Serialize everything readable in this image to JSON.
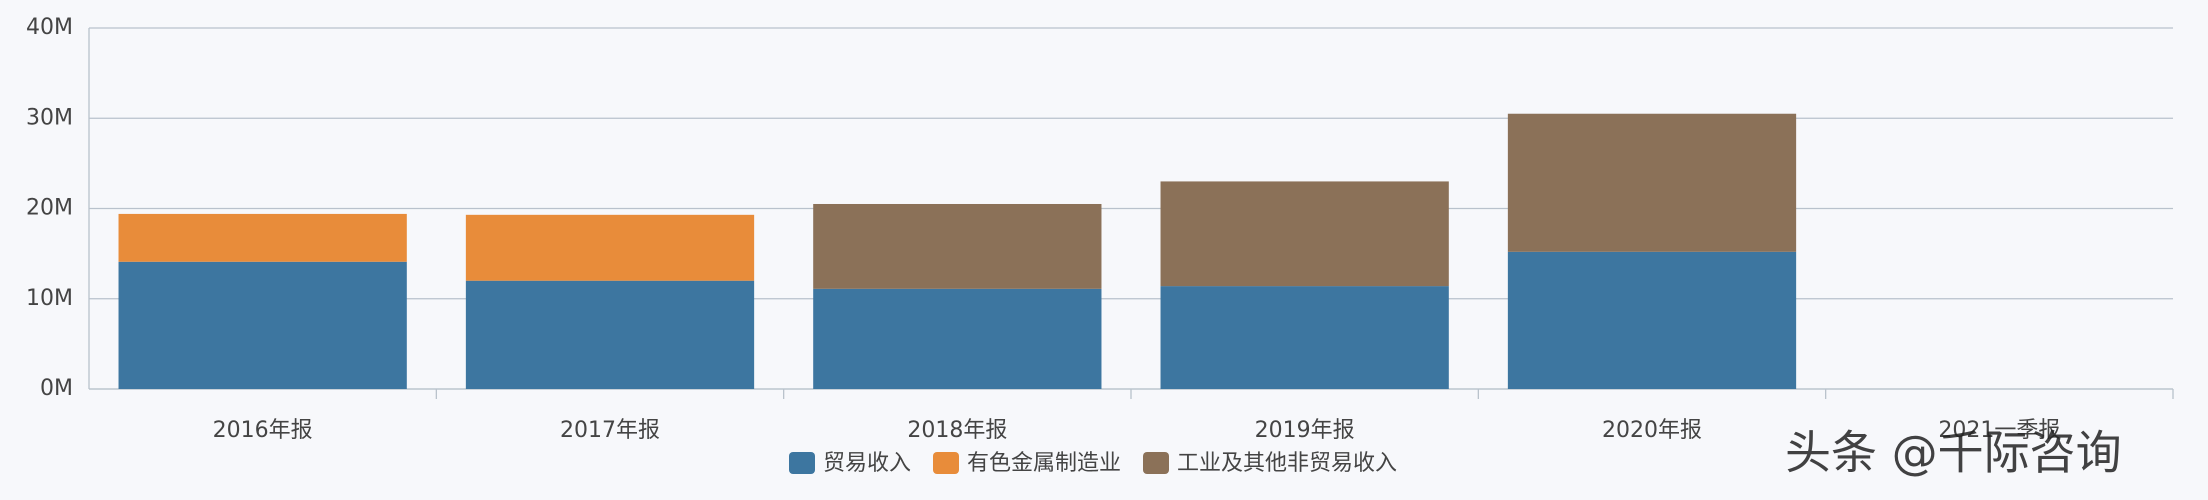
{
  "chart_data": {
    "type": "stacked_bar",
    "categories": [
      "2016年报",
      "2017年报",
      "2018年报",
      "2019年报",
      "2020年报",
      "2021一季报"
    ],
    "series": [
      {
        "name": "贸易收入",
        "color": "#3d76a0",
        "values": [
          14.1,
          12.0,
          11.1,
          11.4,
          15.2,
          null
        ]
      },
      {
        "name": "有色金属制造业",
        "color": "#e88c3a",
        "values": [
          5.3,
          7.3,
          null,
          null,
          null,
          null
        ]
      },
      {
        "name": "工业及其他非贸易收入",
        "color": "#8b7158",
        "values": [
          null,
          null,
          9.4,
          11.6,
          15.3,
          null
        ]
      }
    ],
    "ylim": [
      0,
      40
    ],
    "yticks": [
      {
        "value": 0,
        "label": "0M"
      },
      {
        "value": 10,
        "label": "10M"
      },
      {
        "value": 20,
        "label": "20M"
      },
      {
        "value": 30,
        "label": "30M"
      },
      {
        "value": 40,
        "label": "40M"
      }
    ],
    "grid": true,
    "legend": "bottom",
    "watermark": "头条 @千际咨询"
  }
}
